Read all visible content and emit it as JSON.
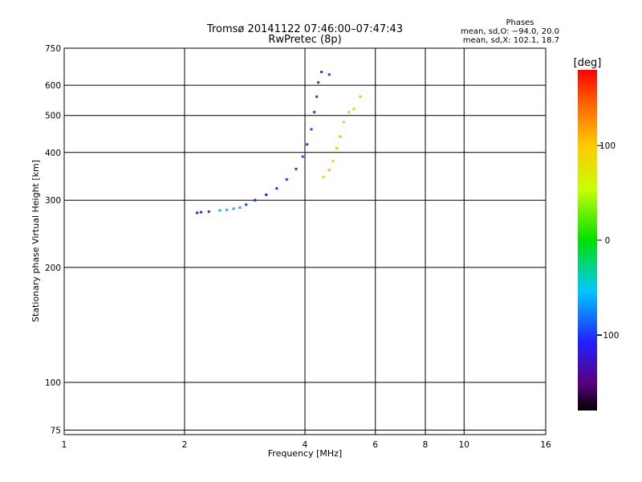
{
  "chart_data": {
    "type": "scatter",
    "title": "Tromsø 20141122 07:46:00–07:47:43",
    "subtitle": "RwPretec (8p)",
    "xlabel": "Frequency [MHz]",
    "ylabel": "Stationary phase Virtual Height [km]",
    "xscale": "log",
    "yscale": "log",
    "xlim": [
      1,
      16
    ],
    "ylim": [
      73,
      750
    ],
    "x_ticks": [
      1,
      2,
      4,
      6,
      8,
      10,
      16
    ],
    "x_tick_labels": [
      "1",
      "2",
      "4",
      "6",
      "8",
      "10",
      "16"
    ],
    "y_ticks": [
      75,
      100,
      200,
      300,
      400,
      500,
      600,
      750
    ],
    "y_tick_labels": [
      "75",
      "100",
      "200",
      "300",
      "400",
      "500",
      "600",
      "750"
    ],
    "grid": true,
    "phase_stats": {
      "heading": "Phases",
      "o_line": "mean, sd,O: −94.0, 20.0",
      "x_line": "mean, sd,X: 102.1, 18.7"
    },
    "colorbar": {
      "label": "[deg]",
      "range": [
        -180,
        180
      ],
      "ticks": [
        100,
        0,
        -100
      ],
      "tick_labels": [
        "100",
        "0",
        "−100"
      ]
    },
    "series": [
      {
        "description": "trace points (O-mode, blue/cyan)",
        "points": [
          {
            "x": 2.15,
            "y": 278,
            "phase": -110
          },
          {
            "x": 2.2,
            "y": 279,
            "phase": -105
          },
          {
            "x": 2.3,
            "y": 280,
            "phase": -100
          },
          {
            "x": 2.45,
            "y": 282,
            "phase": -60
          },
          {
            "x": 2.55,
            "y": 283,
            "phase": -55
          },
          {
            "x": 2.65,
            "y": 285,
            "phase": -60
          },
          {
            "x": 2.75,
            "y": 287,
            "phase": -65
          },
          {
            "x": 2.85,
            "y": 292,
            "phase": -100
          },
          {
            "x": 3.0,
            "y": 300,
            "phase": -120
          },
          {
            "x": 3.2,
            "y": 310,
            "phase": -110
          },
          {
            "x": 3.4,
            "y": 322,
            "phase": -105
          },
          {
            "x": 3.6,
            "y": 340,
            "phase": -100
          },
          {
            "x": 3.8,
            "y": 362,
            "phase": -100
          },
          {
            "x": 3.95,
            "y": 390,
            "phase": -95
          },
          {
            "x": 4.05,
            "y": 420,
            "phase": -95
          },
          {
            "x": 4.15,
            "y": 460,
            "phase": -95
          },
          {
            "x": 4.22,
            "y": 510,
            "phase": -95
          },
          {
            "x": 4.28,
            "y": 560,
            "phase": -95
          },
          {
            "x": 4.32,
            "y": 610,
            "phase": -100
          },
          {
            "x": 4.4,
            "y": 650,
            "phase": -100
          },
          {
            "x": 4.6,
            "y": 640,
            "phase": -100
          }
        ]
      },
      {
        "description": "trace points (X-mode, orange/yellow)",
        "points": [
          {
            "x": 4.45,
            "y": 345,
            "phase": 100
          },
          {
            "x": 4.6,
            "y": 360,
            "phase": 105
          },
          {
            "x": 4.7,
            "y": 380,
            "phase": 100
          },
          {
            "x": 4.8,
            "y": 410,
            "phase": 100
          },
          {
            "x": 4.9,
            "y": 440,
            "phase": 105
          },
          {
            "x": 5.0,
            "y": 480,
            "phase": 100
          },
          {
            "x": 5.15,
            "y": 510,
            "phase": 95
          },
          {
            "x": 5.3,
            "y": 520,
            "phase": 100
          },
          {
            "x": 5.5,
            "y": 560,
            "phase": 105
          }
        ]
      }
    ]
  }
}
